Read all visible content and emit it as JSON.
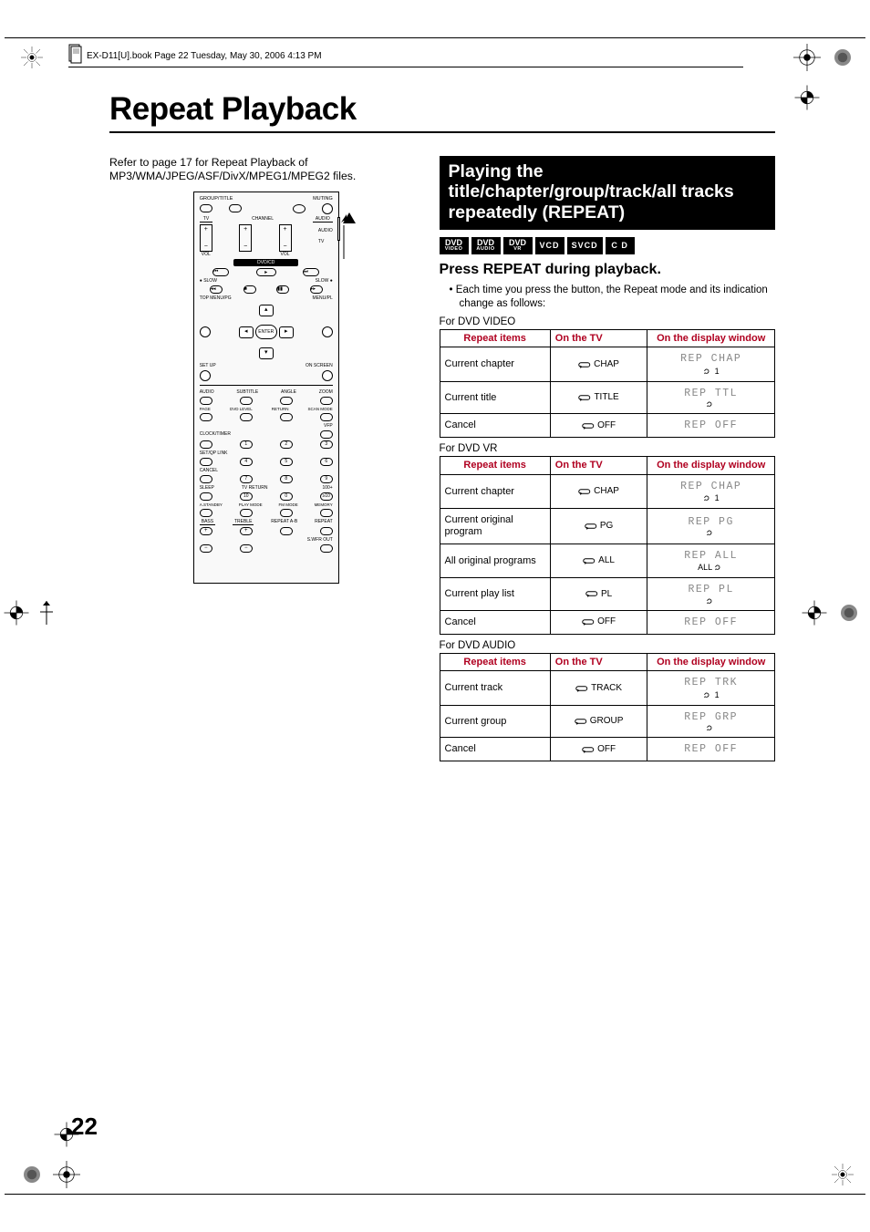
{
  "header_text": "EX-D11[U].book  Page 22  Tuesday, May 30, 2006  4:13 PM",
  "page_title": "Repeat Playback",
  "intro_text": "Refer to page 17 for Repeat Playback of MP3/WMA/JPEG/ASF/DivX/MPEG1/MPEG2 files.",
  "remote": {
    "row1": {
      "l": "GROUP/TITLE",
      "r": "MUTING"
    },
    "row2": {
      "l": "TV",
      "m": "CHANNEL",
      "r": "AUDIO"
    },
    "side_r1": "AUDIO",
    "side_r2": "TV",
    "vol": "VOL",
    "dvdcd": "DVD/CD",
    "slow_l": "SLOW",
    "slow_r": "SLOW",
    "topmenu": "TOP MENU/PG",
    "menupl": "MENU/PL",
    "enter": "ENTER",
    "setup": "SET UP",
    "onscreen": "ON SCREEN",
    "r_audio": "AUDIO",
    "r_sub": "SUBTITLE",
    "r_angle": "ANGLE",
    "r_zoom": "ZOOM",
    "r_page": "PAGE",
    "r_dvdlvl": "DVD LEVEL",
    "r_return": "RETURN",
    "r_scan": "SCAN MODE",
    "r_vfp": "VFP",
    "r_clock": "CLOCK/TIMER",
    "r_setqp": "SET/QP LINK",
    "r_cancel": "CANCEL",
    "r_sleep": "SLEEP",
    "r_tvret": "TV RETURN",
    "r_100": "100+",
    "r_astby": "A.STANDBY",
    "r_pmode": "PLAY MODE",
    "r_fm": "FM MODE",
    "r_mem": "MEMORY",
    "r_bass": "BASS",
    "r_treb": "TREBLE",
    "r_rptab": "REPEAT A-B",
    "r_rpt": "REPEAT",
    "r_swfr": "S.WFR OUT",
    "nums": [
      "1",
      "2",
      "3",
      "4",
      "5",
      "6",
      "7",
      "8",
      "9",
      "10",
      "0",
      "h10"
    ]
  },
  "section_heading": "Playing the title/chapter/group/track/all tracks repeatedly (REPEAT)",
  "badges": [
    {
      "top": "DVD",
      "sub": "VIDEO"
    },
    {
      "top": "DVD",
      "sub": "AUDIO"
    },
    {
      "top": "DVD",
      "sub": "VR"
    },
    {
      "top": "VCD"
    },
    {
      "top": "SVCD"
    },
    {
      "top": "C D"
    }
  ],
  "instruction_bold": "Press REPEAT during playback.",
  "bullet_text": "Each time you press the button, the Repeat mode and its indication change as follows:",
  "table_headers": [
    "Repeat items",
    "On the TV",
    "On the display window"
  ],
  "header_color": "#b00020",
  "tables": [
    {
      "caption": "For DVD VIDEO",
      "rows": [
        {
          "item": "Current chapter",
          "tv": "CHAP",
          "disp": "REP CHAP",
          "sub": "1"
        },
        {
          "item": "Current title",
          "tv": "TITLE",
          "disp": "REP TTL",
          "sub": ""
        },
        {
          "item": "Cancel",
          "tv": "OFF",
          "disp": "REP OFF",
          "sub": null
        }
      ]
    },
    {
      "caption": "For DVD VR",
      "rows": [
        {
          "item": "Current chapter",
          "tv": "CHAP",
          "disp": "REP CHAP",
          "sub": "1"
        },
        {
          "item": "Current original program",
          "tv": "PG",
          "disp": "REP PG",
          "sub": ""
        },
        {
          "item": "All original programs",
          "tv": "ALL",
          "disp": "REP ALL",
          "sub": "ALL"
        },
        {
          "item": "Current play list",
          "tv": "PL",
          "disp": "REP PL",
          "sub": ""
        },
        {
          "item": "Cancel",
          "tv": "OFF",
          "disp": "REP OFF",
          "sub": null
        }
      ]
    },
    {
      "caption": "For DVD AUDIO",
      "rows": [
        {
          "item": "Current track",
          "tv": "TRACK",
          "disp": "REP TRK",
          "sub": "1"
        },
        {
          "item": "Current group",
          "tv": "GROUP",
          "disp": "REP GRP",
          "sub": ""
        },
        {
          "item": "Cancel",
          "tv": "OFF",
          "disp": "REP OFF",
          "sub": null
        }
      ]
    }
  ],
  "page_number": "22"
}
